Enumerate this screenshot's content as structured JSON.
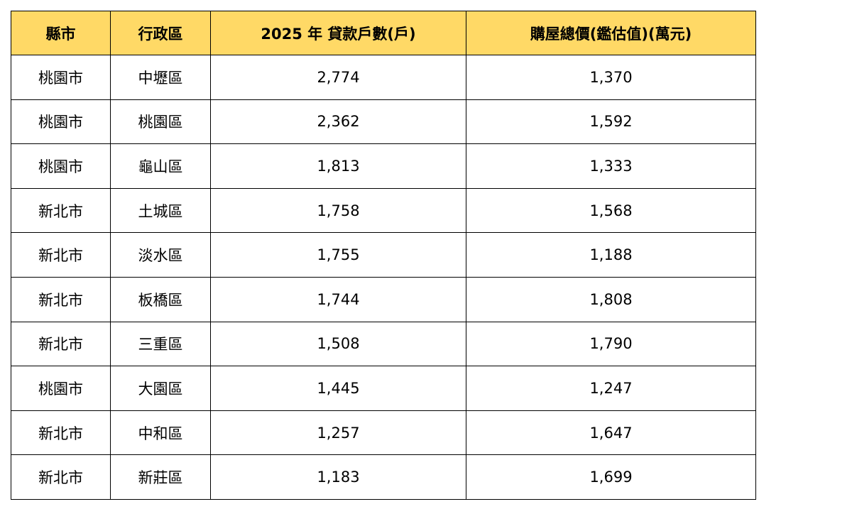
{
  "table": {
    "headers": [
      "縣市",
      "行政區",
      "2025 年  貸款戶數(戶)",
      "購屋總價(鑑估值)(萬元)"
    ],
    "rows": [
      [
        "桃園市",
        "中壢區",
        "2,774",
        "1,370"
      ],
      [
        "桃園市",
        "桃園區",
        "2,362",
        "1,592"
      ],
      [
        "桃園市",
        "龜山區",
        "1,813",
        "1,333"
      ],
      [
        "新北市",
        "土城區",
        "1,758",
        "1,568"
      ],
      [
        "新北市",
        "淡水區",
        "1,755",
        "1,188"
      ],
      [
        "新北市",
        "板橋區",
        "1,744",
        "1,808"
      ],
      [
        "新北市",
        "三重區",
        "1,508",
        "1,790"
      ],
      [
        "桃園市",
        "大園區",
        "1,445",
        "1,247"
      ],
      [
        "新北市",
        "中和區",
        "1,257",
        "1,647"
      ],
      [
        "新北市",
        "新莊區",
        "1,183",
        "1,699"
      ]
    ],
    "colors": {
      "header_background": "#ffd966",
      "border": "#000000",
      "text": "#000000"
    }
  }
}
